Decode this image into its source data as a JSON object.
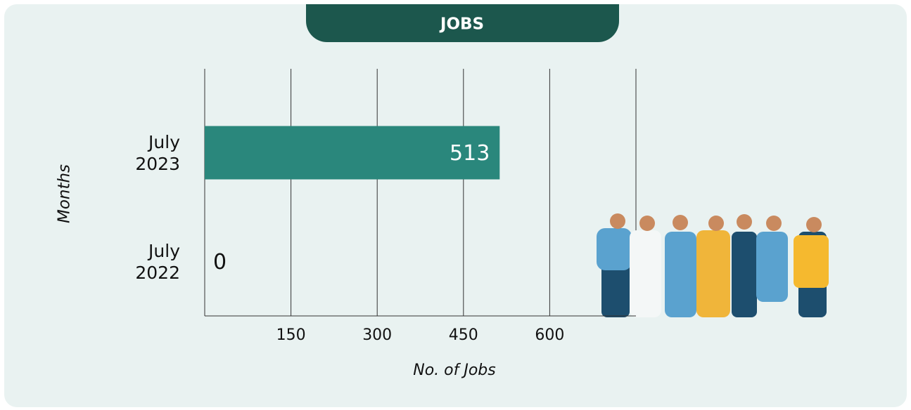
{
  "chart_data": {
    "type": "hbar",
    "title": "JOBS",
    "categories": [
      "July 2023",
      "July 2022"
    ],
    "values": [
      513,
      0
    ],
    "color": "#2a877c",
    "xlabel": "No. of Jobs",
    "ylabel": "Months",
    "xlim": [
      0,
      750
    ],
    "xticks": [
      150,
      300,
      450,
      600
    ],
    "grid": true
  }
}
